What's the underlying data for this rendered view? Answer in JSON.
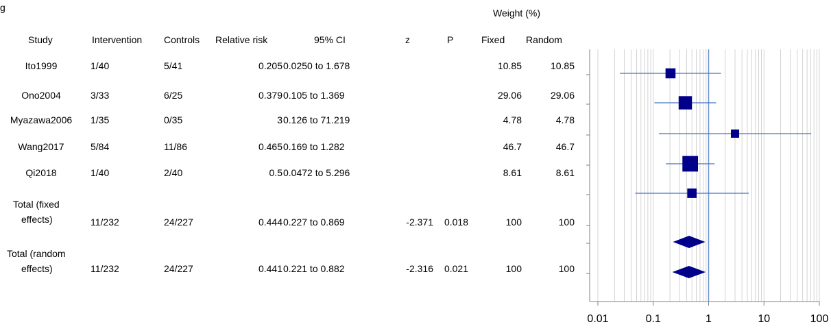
{
  "table": {
    "title_fragment": "g",
    "weight_group_header": "Weight (%)",
    "headers": {
      "study": "Study",
      "intervention": "Intervention",
      "controls": "Controls",
      "relative_risk": "Relative risk",
      "ci": "95% CI",
      "z": "z",
      "p": "P",
      "fixed": "Fixed",
      "random": "Random"
    },
    "rows": [
      {
        "study": "Ito1999",
        "intervention": "1/40",
        "controls": "5/41",
        "rr": "0.205",
        "ci": "0.0250 to 1.678",
        "z": "",
        "p": "",
        "fixed": "10.85",
        "random": "10.85"
      },
      {
        "study": "Ono2004",
        "intervention": "3/33",
        "controls": "6/25",
        "rr": "0.379",
        "ci": "0.105 to 1.369",
        "z": "",
        "p": "",
        "fixed": "29.06",
        "random": "29.06"
      },
      {
        "study": "Myazawa2006",
        "intervention": "1/35",
        "controls": "0/35",
        "rr": "3",
        "ci": "0.126 to 71.219",
        "z": "",
        "p": "",
        "fixed": "4.78",
        "random": "4.78"
      },
      {
        "study": "Wang2017",
        "intervention": "5/84",
        "controls": "11/86",
        "rr": "0.465",
        "ci": "0.169 to 1.282",
        "z": "",
        "p": "",
        "fixed": "46.7",
        "random": "46.7"
      },
      {
        "study": "Qi2018",
        "intervention": "1/40",
        "controls": "2/40",
        "rr": "0.5",
        "ci": "0.0472 to 5.296",
        "z": "",
        "p": "",
        "fixed": "8.61",
        "random": "8.61"
      }
    ],
    "totals": [
      {
        "label_line1": "Total (fixed",
        "label_line2": "effects)",
        "intervention": "11/232",
        "controls": "24/227",
        "rr": "0.444",
        "ci": "0.227 to 0.869",
        "z": "-2.371",
        "p": "0.018",
        "fixed": "100",
        "random": "100"
      },
      {
        "label_line1": "Total (random",
        "label_line2": "effects)",
        "intervention": "11/232",
        "controls": "24/227",
        "rr": "0.441",
        "ci": "0.221 to 0.882",
        "z": "-2.316",
        "p": "0.021",
        "fixed": "100",
        "random": "100"
      }
    ]
  },
  "chart_data": {
    "type": "forest",
    "x_scale": "log",
    "xlim": [
      0.01,
      100
    ],
    "x_ticks": [
      "0.01",
      "0.1",
      "1",
      "10",
      "100"
    ],
    "reference_line": 1,
    "grid": true,
    "studies": [
      {
        "name": "Ito1999",
        "estimate": 0.205,
        "lower": 0.025,
        "upper": 1.678,
        "weight": 10.85
      },
      {
        "name": "Ono2004",
        "estimate": 0.379,
        "lower": 0.105,
        "upper": 1.369,
        "weight": 29.06
      },
      {
        "name": "Myazawa2006",
        "estimate": 3,
        "lower": 0.126,
        "upper": 71.219,
        "weight": 4.78
      },
      {
        "name": "Wang2017",
        "estimate": 0.465,
        "lower": 0.169,
        "upper": 1.282,
        "weight": 46.7
      },
      {
        "name": "Qi2018",
        "estimate": 0.5,
        "lower": 0.0472,
        "upper": 5.296,
        "weight": 8.61
      }
    ],
    "pooled": [
      {
        "name": "Total (fixed effects)",
        "estimate": 0.444,
        "lower": 0.227,
        "upper": 0.869
      },
      {
        "name": "Total (random effects)",
        "estimate": 0.441,
        "lower": 0.221,
        "upper": 0.882
      }
    ],
    "colors": {
      "marker": "#00008B",
      "ci_line": "#4472C4",
      "grid": "#C8C8C8",
      "axis": "#808080",
      "reference": "#6A8FCF"
    }
  }
}
